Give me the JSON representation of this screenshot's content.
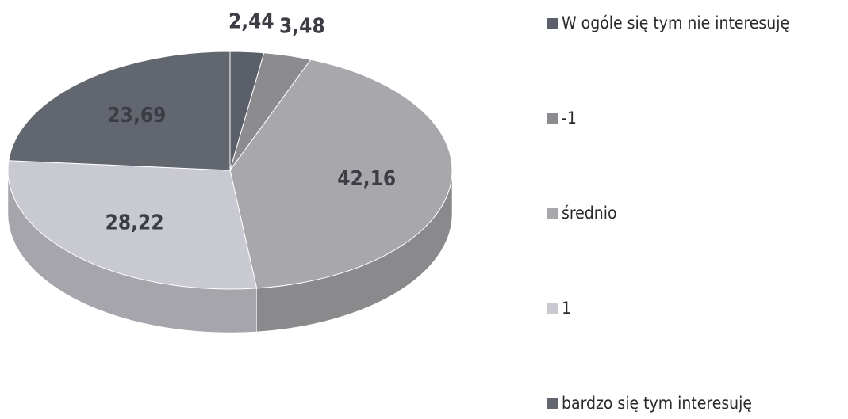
{
  "chart_data": {
    "type": "pie",
    "categories": [
      "W ogóle się tym nie interesuję",
      "-1",
      "średnio",
      "1",
      "bardzo się tym interesuję"
    ],
    "values": [
      2.44,
      3.48,
      42.16,
      28.22,
      23.69
    ],
    "value_labels": [
      "2,44",
      "3,48",
      "42,16",
      "28,22",
      "23,69"
    ],
    "colors": [
      "#5b5f6a",
      "#8c8c90",
      "#a8a8ac",
      "#c9c9d1",
      "#62666f"
    ],
    "legend": "right"
  }
}
